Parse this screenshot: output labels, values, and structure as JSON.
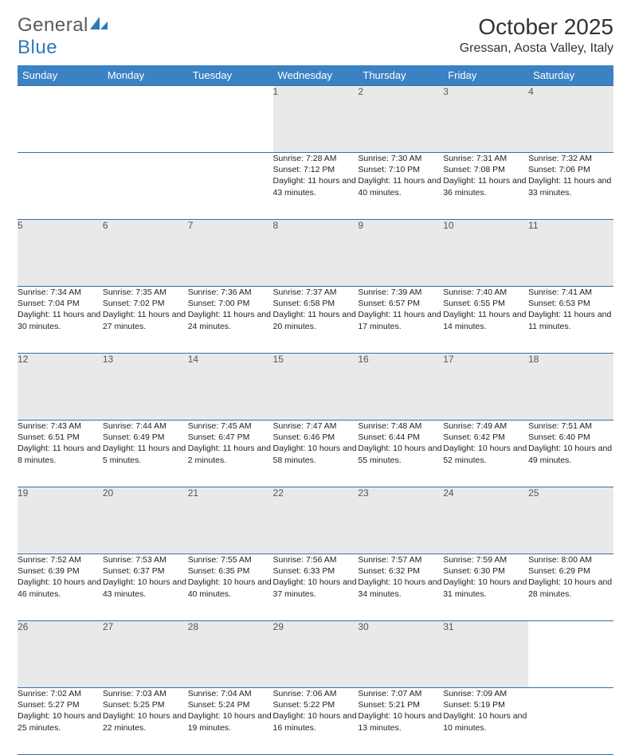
{
  "logo": {
    "word1": "General",
    "word2": "Blue",
    "mark_color": "#2e79b8"
  },
  "title": "October 2025",
  "subtitle": "Gressan, Aosta Valley, Italy",
  "header_bg": "#3b82c4",
  "daynum_bg": "#e9e9e9",
  "rule_color": "#3b6fa0",
  "day_names": [
    "Sunday",
    "Monday",
    "Tuesday",
    "Wednesday",
    "Thursday",
    "Friday",
    "Saturday"
  ],
  "weeks": [
    [
      null,
      null,
      null,
      {
        "n": "1",
        "sunrise": "7:28 AM",
        "sunset": "7:12 PM",
        "dl": "11 hours and 43 minutes."
      },
      {
        "n": "2",
        "sunrise": "7:30 AM",
        "sunset": "7:10 PM",
        "dl": "11 hours and 40 minutes."
      },
      {
        "n": "3",
        "sunrise": "7:31 AM",
        "sunset": "7:08 PM",
        "dl": "11 hours and 36 minutes."
      },
      {
        "n": "4",
        "sunrise": "7:32 AM",
        "sunset": "7:06 PM",
        "dl": "11 hours and 33 minutes."
      }
    ],
    [
      {
        "n": "5",
        "sunrise": "7:34 AM",
        "sunset": "7:04 PM",
        "dl": "11 hours and 30 minutes."
      },
      {
        "n": "6",
        "sunrise": "7:35 AM",
        "sunset": "7:02 PM",
        "dl": "11 hours and 27 minutes."
      },
      {
        "n": "7",
        "sunrise": "7:36 AM",
        "sunset": "7:00 PM",
        "dl": "11 hours and 24 minutes."
      },
      {
        "n": "8",
        "sunrise": "7:37 AM",
        "sunset": "6:58 PM",
        "dl": "11 hours and 20 minutes."
      },
      {
        "n": "9",
        "sunrise": "7:39 AM",
        "sunset": "6:57 PM",
        "dl": "11 hours and 17 minutes."
      },
      {
        "n": "10",
        "sunrise": "7:40 AM",
        "sunset": "6:55 PM",
        "dl": "11 hours and 14 minutes."
      },
      {
        "n": "11",
        "sunrise": "7:41 AM",
        "sunset": "6:53 PM",
        "dl": "11 hours and 11 minutes."
      }
    ],
    [
      {
        "n": "12",
        "sunrise": "7:43 AM",
        "sunset": "6:51 PM",
        "dl": "11 hours and 8 minutes."
      },
      {
        "n": "13",
        "sunrise": "7:44 AM",
        "sunset": "6:49 PM",
        "dl": "11 hours and 5 minutes."
      },
      {
        "n": "14",
        "sunrise": "7:45 AM",
        "sunset": "6:47 PM",
        "dl": "11 hours and 2 minutes."
      },
      {
        "n": "15",
        "sunrise": "7:47 AM",
        "sunset": "6:46 PM",
        "dl": "10 hours and 58 minutes."
      },
      {
        "n": "16",
        "sunrise": "7:48 AM",
        "sunset": "6:44 PM",
        "dl": "10 hours and 55 minutes."
      },
      {
        "n": "17",
        "sunrise": "7:49 AM",
        "sunset": "6:42 PM",
        "dl": "10 hours and 52 minutes."
      },
      {
        "n": "18",
        "sunrise": "7:51 AM",
        "sunset": "6:40 PM",
        "dl": "10 hours and 49 minutes."
      }
    ],
    [
      {
        "n": "19",
        "sunrise": "7:52 AM",
        "sunset": "6:39 PM",
        "dl": "10 hours and 46 minutes."
      },
      {
        "n": "20",
        "sunrise": "7:53 AM",
        "sunset": "6:37 PM",
        "dl": "10 hours and 43 minutes."
      },
      {
        "n": "21",
        "sunrise": "7:55 AM",
        "sunset": "6:35 PM",
        "dl": "10 hours and 40 minutes."
      },
      {
        "n": "22",
        "sunrise": "7:56 AM",
        "sunset": "6:33 PM",
        "dl": "10 hours and 37 minutes."
      },
      {
        "n": "23",
        "sunrise": "7:57 AM",
        "sunset": "6:32 PM",
        "dl": "10 hours and 34 minutes."
      },
      {
        "n": "24",
        "sunrise": "7:59 AM",
        "sunset": "6:30 PM",
        "dl": "10 hours and 31 minutes."
      },
      {
        "n": "25",
        "sunrise": "8:00 AM",
        "sunset": "6:29 PM",
        "dl": "10 hours and 28 minutes."
      }
    ],
    [
      {
        "n": "26",
        "sunrise": "7:02 AM",
        "sunset": "5:27 PM",
        "dl": "10 hours and 25 minutes."
      },
      {
        "n": "27",
        "sunrise": "7:03 AM",
        "sunset": "5:25 PM",
        "dl": "10 hours and 22 minutes."
      },
      {
        "n": "28",
        "sunrise": "7:04 AM",
        "sunset": "5:24 PM",
        "dl": "10 hours and 19 minutes."
      },
      {
        "n": "29",
        "sunrise": "7:06 AM",
        "sunset": "5:22 PM",
        "dl": "10 hours and 16 minutes."
      },
      {
        "n": "30",
        "sunrise": "7:07 AM",
        "sunset": "5:21 PM",
        "dl": "10 hours and 13 minutes."
      },
      {
        "n": "31",
        "sunrise": "7:09 AM",
        "sunset": "5:19 PM",
        "dl": "10 hours and 10 minutes."
      },
      null
    ]
  ],
  "labels": {
    "sunrise": "Sunrise:",
    "sunset": "Sunset:",
    "daylight": "Daylight:"
  }
}
